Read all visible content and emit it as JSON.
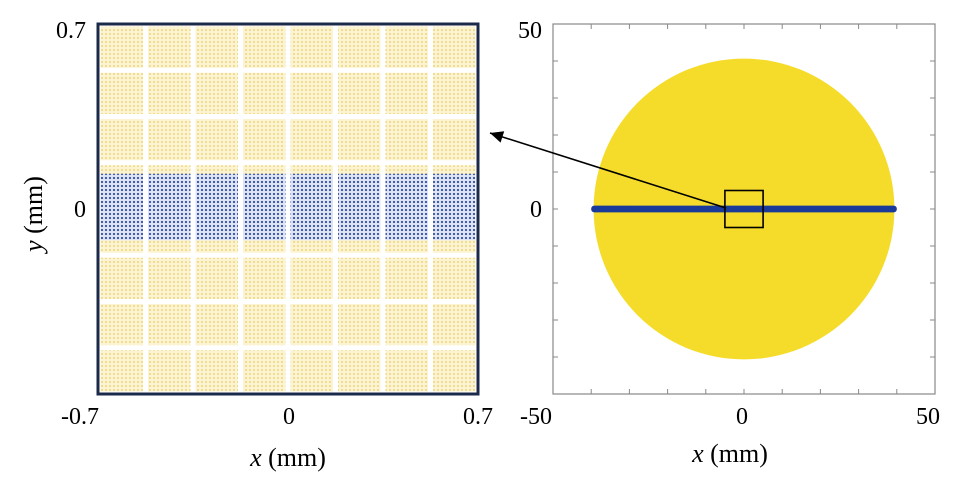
{
  "chart_data": [
    {
      "type": "scatter",
      "panel": "zoomed-inset",
      "xlabel_var": "x",
      "xlabel_unit": " (mm)",
      "ylabel_var": "y",
      "ylabel_unit": " (mm)",
      "xlim": [
        -0.7,
        0.7
      ],
      "ylim": [
        -0.7,
        0.7
      ],
      "x_ticks": [
        "-0.7",
        "0",
        "0.7"
      ],
      "y_ticks": [
        "0.7",
        "0"
      ],
      "grid_cells": 8,
      "highlight_band_y": [
        -0.05,
        0.05
      ],
      "series": [
        {
          "color": "#f2dc8a"
        },
        {
          "color": "#3f5aa8"
        }
      ],
      "frame_color": "#1c2a4a"
    },
    {
      "type": "scatter",
      "panel": "full-view",
      "xlabel_var": "x",
      "xlabel_unit": " (mm)",
      "xlim": [
        -50,
        50
      ],
      "ylim": [
        -50,
        50
      ],
      "x_ticks": [
        "-50",
        "0",
        "50"
      ],
      "y_ticks": [
        "50",
        "0"
      ],
      "disk_radius": 40,
      "band_halfwidth": 0.9,
      "inset_box": [
        -5,
        -5,
        5,
        5
      ],
      "series": [
        {
          "color": "#f5dc2a"
        },
        {
          "color": "#1a3a9a"
        }
      ],
      "frame_color": "#888888"
    }
  ]
}
